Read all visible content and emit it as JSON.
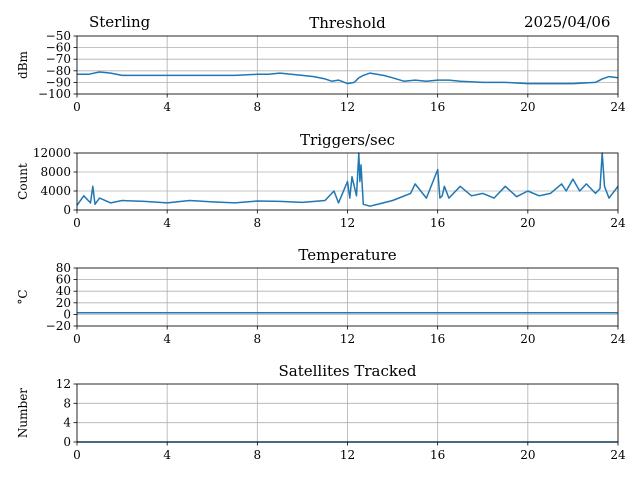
{
  "header": {
    "station": "Sterling",
    "date": "2025/04/06"
  },
  "style": {
    "series_color": "#1f77b4",
    "grid_color": "#b0b0b0",
    "axis_color": "#000000"
  },
  "chart_data": [
    {
      "type": "line",
      "title": "Threshold",
      "ylabel": "dBm",
      "xlim": [
        0,
        24
      ],
      "ylim": [
        -100,
        -50
      ],
      "xticks": [
        "0",
        "4",
        "8",
        "12",
        "16",
        "20",
        "24"
      ],
      "yticks": [
        "−50",
        "−60",
        "−70",
        "−80",
        "−90",
        "−100"
      ],
      "ytick_values": [
        -50,
        -60,
        -70,
        -80,
        -90,
        -100
      ],
      "grid": true,
      "series": [
        {
          "x": [
            0,
            0.5,
            1,
            1.5,
            2,
            3,
            4,
            5,
            6,
            7,
            8,
            8.5,
            9,
            9.5,
            10,
            10.5,
            11,
            11.3,
            11.6,
            12,
            12.3,
            12.5,
            12.7,
            13,
            13.3,
            13.6,
            14,
            14.5,
            15,
            15.5,
            16,
            16.5,
            17,
            18,
            19,
            20,
            21,
            22,
            23,
            23.3,
            23.6,
            24
          ],
          "y": [
            -83,
            -83,
            -81,
            -82,
            -84,
            -84,
            -84,
            -84,
            -84,
            -84,
            -83,
            -83,
            -82,
            -83,
            -84,
            -85,
            -87,
            -89,
            -88,
            -91,
            -90,
            -86,
            -84,
            -82,
            -83,
            -84,
            -86,
            -89,
            -88,
            -89,
            -88,
            -88,
            -89,
            -90,
            -90,
            -91,
            -91,
            -91,
            -90,
            -87,
            -85,
            -86
          ]
        }
      ]
    },
    {
      "type": "line",
      "title": "Triggers/sec",
      "ylabel": "Count",
      "xlim": [
        0,
        24
      ],
      "ylim": [
        0,
        12000
      ],
      "xticks": [
        "0",
        "4",
        "8",
        "12",
        "16",
        "20",
        "24"
      ],
      "yticks": [
        "0",
        "4000",
        "8000",
        "12000"
      ],
      "ytick_values": [
        0,
        4000,
        8000,
        12000
      ],
      "grid": true,
      "series": [
        {
          "x": [
            0,
            0.3,
            0.6,
            0.7,
            0.8,
            1,
            1.5,
            2,
            3,
            4,
            5,
            6,
            7,
            8,
            9,
            10,
            11,
            11.4,
            11.6,
            12,
            12.1,
            12.2,
            12.4,
            12.5,
            12.55,
            12.6,
            12.7,
            13,
            14,
            14.8,
            15,
            15.5,
            16,
            16.1,
            16.2,
            16.3,
            16.5,
            17,
            17.5,
            18,
            18.5,
            19,
            19.5,
            20,
            20.5,
            21,
            21.5,
            21.7,
            22,
            22.3,
            22.6,
            23,
            23.2,
            23.3,
            23.4,
            23.6,
            24
          ],
          "y": [
            1000,
            3000,
            1500,
            5000,
            1200,
            2500,
            1500,
            2000,
            1800,
            1500,
            2000,
            1700,
            1500,
            1900,
            1800,
            1600,
            2000,
            4000,
            1500,
            6000,
            2500,
            7000,
            3000,
            12000,
            6000,
            9500,
            1200,
            800,
            2000,
            3500,
            5500,
            2500,
            8500,
            2500,
            3000,
            5000,
            2500,
            5000,
            3000,
            3500,
            2500,
            5000,
            2800,
            4000,
            3000,
            3500,
            5500,
            4000,
            6500,
            4000,
            5500,
            3500,
            4500,
            12000,
            5000,
            2500,
            5000
          ]
        }
      ]
    },
    {
      "type": "line",
      "title": "Temperature",
      "ylabel": "°C",
      "xlim": [
        0,
        24
      ],
      "ylim": [
        -20,
        80
      ],
      "xticks": [
        "0",
        "4",
        "8",
        "12",
        "16",
        "20",
        "24"
      ],
      "yticks": [
        "80",
        "60",
        "40",
        "20",
        "0",
        "−20"
      ],
      "ytick_values": [
        80,
        60,
        40,
        20,
        0,
        -20
      ],
      "grid": true,
      "series": [
        {
          "x": [
            0,
            24
          ],
          "y": [
            3,
            3
          ]
        }
      ]
    },
    {
      "type": "line",
      "title": "Satellites Tracked",
      "ylabel": "Number",
      "xlim": [
        0,
        24
      ],
      "ylim": [
        0,
        12
      ],
      "xticks": [
        "0",
        "4",
        "8",
        "12",
        "16",
        "20",
        "24"
      ],
      "yticks": [
        "12",
        "8",
        "4",
        "0"
      ],
      "ytick_values": [
        12,
        8,
        4,
        0
      ],
      "grid": true,
      "series": [
        {
          "x": [
            0,
            24
          ],
          "y": [
            0,
            0
          ]
        }
      ]
    }
  ]
}
